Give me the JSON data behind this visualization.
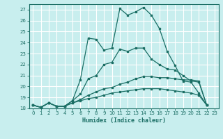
{
  "xlabel": "Humidex (Indice chaleur)",
  "bg_color": "#c8eeee",
  "grid_color": "#aadddd",
  "line_color": "#1a6e64",
  "xlim": [
    -0.5,
    23.5
  ],
  "ylim": [
    18,
    27.5
  ],
  "xticks": [
    0,
    1,
    2,
    3,
    4,
    5,
    6,
    7,
    8,
    9,
    10,
    11,
    12,
    13,
    14,
    15,
    16,
    17,
    18,
    19,
    20,
    21,
    22,
    23
  ],
  "yticks": [
    18,
    19,
    20,
    21,
    22,
    23,
    24,
    25,
    26,
    27
  ],
  "series": [
    {
      "x": [
        0,
        1,
        2,
        3,
        4,
        5,
        6,
        7,
        8,
        9,
        10,
        11,
        12,
        13,
        14,
        15,
        16,
        17,
        18,
        19,
        20,
        21,
        22
      ],
      "y": [
        18.3,
        18.1,
        18.5,
        18.2,
        18.2,
        18.7,
        20.6,
        24.4,
        24.3,
        23.3,
        23.5,
        27.1,
        26.5,
        26.8,
        27.2,
        26.5,
        25.3,
        23.2,
        21.9,
        20.5,
        20.4,
        19.4,
        18.3
      ]
    },
    {
      "x": [
        0,
        1,
        2,
        3,
        4,
        5,
        6,
        7,
        8,
        9,
        10,
        11,
        12,
        13,
        14,
        15,
        16,
        17,
        18,
        19,
        20,
        21,
        22
      ],
      "y": [
        18.3,
        18.1,
        18.5,
        18.2,
        18.2,
        18.7,
        19.3,
        20.7,
        21.0,
        22.0,
        22.2,
        23.4,
        23.2,
        23.5,
        23.5,
        22.5,
        22.0,
        21.6,
        21.5,
        21.0,
        20.5,
        20.4,
        18.3
      ]
    },
    {
      "x": [
        0,
        1,
        2,
        3,
        4,
        5,
        6,
        7,
        8,
        9,
        10,
        11,
        12,
        13,
        14,
        15,
        16,
        17,
        18,
        19,
        20,
        21,
        22
      ],
      "y": [
        18.3,
        18.1,
        18.5,
        18.2,
        18.2,
        18.5,
        18.8,
        19.2,
        19.5,
        19.8,
        19.9,
        20.2,
        20.4,
        20.7,
        20.9,
        20.9,
        20.8,
        20.8,
        20.7,
        20.6,
        20.6,
        20.5,
        18.3
      ]
    },
    {
      "x": [
        0,
        1,
        2,
        3,
        4,
        5,
        6,
        7,
        8,
        9,
        10,
        11,
        12,
        13,
        14,
        15,
        16,
        17,
        18,
        19,
        20,
        21,
        22
      ],
      "y": [
        18.3,
        18.1,
        18.5,
        18.2,
        18.2,
        18.5,
        18.7,
        18.9,
        19.0,
        19.2,
        19.4,
        19.5,
        19.6,
        19.7,
        19.8,
        19.8,
        19.8,
        19.7,
        19.6,
        19.5,
        19.4,
        19.2,
        18.3
      ]
    }
  ]
}
